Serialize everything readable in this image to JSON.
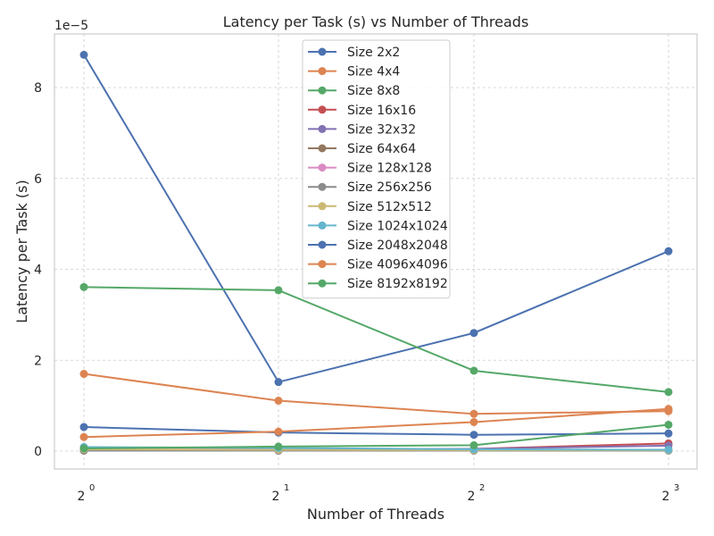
{
  "chart_data": {
    "type": "line",
    "title": "Latency per Task (s) vs Number of Threads",
    "xlabel": "Number of Threads",
    "ylabel": "Latency per Task (s)",
    "y_offset_label": "1e−5",
    "x_scale": "log2",
    "x": [
      1,
      2,
      4,
      8
    ],
    "x_tick_base": "2",
    "x_tick_exponents": [
      "0",
      "1",
      "2",
      "3"
    ],
    "y_ticks": [
      "0",
      "2",
      "4",
      "6",
      "8"
    ],
    "y_tick_values": [
      0,
      2,
      4,
      6,
      8
    ],
    "ylim": [
      -0.4,
      9.2
    ],
    "grid": true,
    "legend_position": "top-center",
    "series": [
      {
        "name": "Size 2x2",
        "color": "#4c72b0",
        "values": [
          8.72,
          1.52,
          2.6,
          4.4
        ]
      },
      {
        "name": "Size 4x4",
        "color": "#dd8452",
        "values": [
          1.7,
          1.11,
          0.82,
          0.88
        ]
      },
      {
        "name": "Size 8x8",
        "color": "#55a868",
        "values": [
          3.61,
          3.54,
          1.77,
          1.3
        ]
      },
      {
        "name": "Size 16x16",
        "color": "#c44e52",
        "values": [
          0.02,
          0.03,
          0.05,
          0.17
        ]
      },
      {
        "name": "Size 32x32",
        "color": "#8172b3",
        "values": [
          0.03,
          0.04,
          0.05,
          0.12
        ]
      },
      {
        "name": "Size 64x64",
        "color": "#937860",
        "values": [
          0.01,
          0.01,
          0.01,
          0.02
        ]
      },
      {
        "name": "Size 128x128",
        "color": "#da8bc3",
        "values": [
          0.01,
          0.01,
          0.01,
          0.02
        ]
      },
      {
        "name": "Size 256x256",
        "color": "#8c8c8c",
        "values": [
          0.01,
          0.01,
          0.01,
          0.01
        ]
      },
      {
        "name": "Size 512x512",
        "color": "#ccb974",
        "values": [
          0.04,
          0.03,
          0.02,
          0.02
        ]
      },
      {
        "name": "Size 1024x1024",
        "color": "#64b5cd",
        "values": [
          0.09,
          0.07,
          0.04,
          0.03
        ]
      },
      {
        "name": "Size 2048x2048",
        "color": "#4c72b0",
        "values": [
          0.53,
          0.41,
          0.36,
          0.39
        ]
      },
      {
        "name": "Size 4096x4096",
        "color": "#dd8452",
        "values": [
          0.31,
          0.43,
          0.64,
          0.93
        ]
      },
      {
        "name": "Size 8192x8192",
        "color": "#55a868",
        "values": [
          0.06,
          0.1,
          0.13,
          0.58
        ]
      }
    ]
  }
}
